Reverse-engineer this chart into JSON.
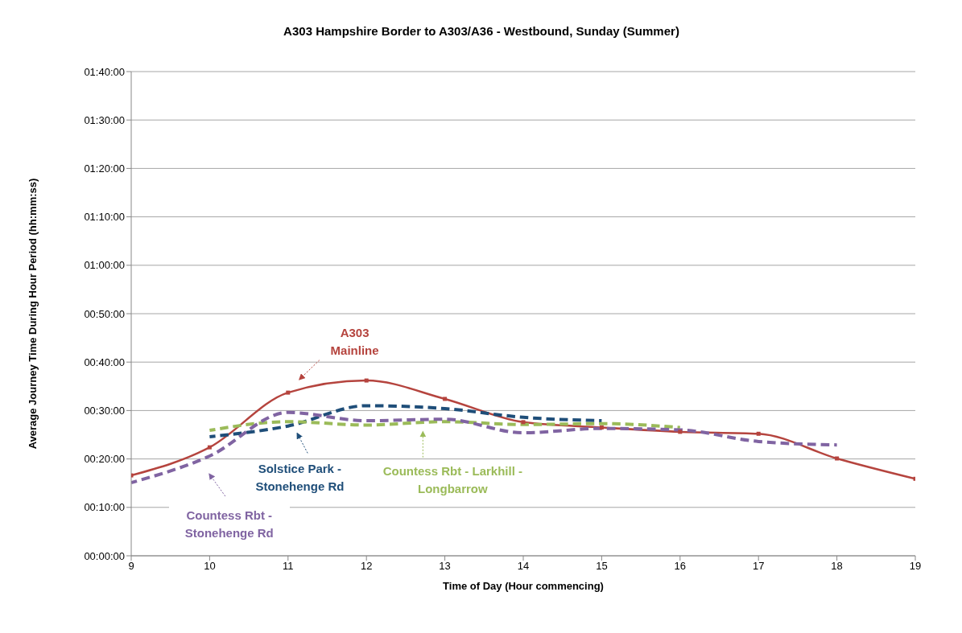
{
  "chart_data": {
    "type": "line",
    "title": "A303 Hampshire Border to A303/A36 - Westbound, Sunday (Summer)",
    "xlabel": "Time of Day (Hour commencing)",
    "ylabel": "Average Journey Time During Hour Period (hh:mm:ss)",
    "xlim": [
      9,
      19
    ],
    "xticks": [
      9,
      10,
      11,
      12,
      13,
      14,
      15,
      16,
      17,
      18,
      19
    ],
    "ylim": [
      0,
      100
    ],
    "yticks": [
      {
        "value": 0,
        "label": "00:00:00"
      },
      {
        "value": 10,
        "label": "00:10:00"
      },
      {
        "value": 20,
        "label": "00:20:00"
      },
      {
        "value": 30,
        "label": "00:30:00"
      },
      {
        "value": 40,
        "label": "00:40:00"
      },
      {
        "value": 50,
        "label": "00:50:00"
      },
      {
        "value": 60,
        "label": "01:00:00"
      },
      {
        "value": 70,
        "label": "01:10:00"
      },
      {
        "value": 80,
        "label": "01:20:00"
      },
      {
        "value": 90,
        "label": "01:30:00"
      },
      {
        "value": 100,
        "label": "01:40:00"
      }
    ],
    "grid": "y",
    "legend": "bottom left",
    "series": [
      {
        "name": "A303 Mainline",
        "color": "#b5443e",
        "line_style": "solid",
        "marker": "square",
        "x": [
          9,
          10,
          11,
          12,
          13,
          14,
          15,
          16,
          17,
          18,
          19
        ],
        "values": [
          16.6,
          22.4,
          33.7,
          36.2,
          32.4,
          27.6,
          26.5,
          25.6,
          25.2,
          20.1,
          15.9
        ]
      },
      {
        "name": "Solstice Park - Stonehenge Rd",
        "color": "#1f4e79",
        "line_style": "dashed",
        "marker": "none",
        "x": [
          10,
          11,
          12,
          13,
          14,
          15
        ],
        "values": [
          24.6,
          26.8,
          31.0,
          30.4,
          28.6,
          27.9
        ]
      },
      {
        "name": "Countess Rbt - Larkhill - Longbarrow",
        "color": "#9bbb59",
        "line_style": "dashed",
        "marker": "none",
        "x": [
          10,
          11,
          12,
          13,
          14,
          15,
          16
        ],
        "values": [
          25.9,
          27.7,
          27.0,
          27.7,
          27.1,
          27.3,
          26.5
        ]
      },
      {
        "name": "Countess Rbt - Stonehenge Rd",
        "color": "#8064a2",
        "line_style": "dashed",
        "marker": "none",
        "x": [
          9,
          10,
          11,
          12,
          13,
          14,
          15,
          16,
          17,
          18
        ],
        "values": [
          15.1,
          20.6,
          29.6,
          27.9,
          28.2,
          25.4,
          26.3,
          26.0,
          23.6,
          22.9
        ]
      }
    ]
  }
}
